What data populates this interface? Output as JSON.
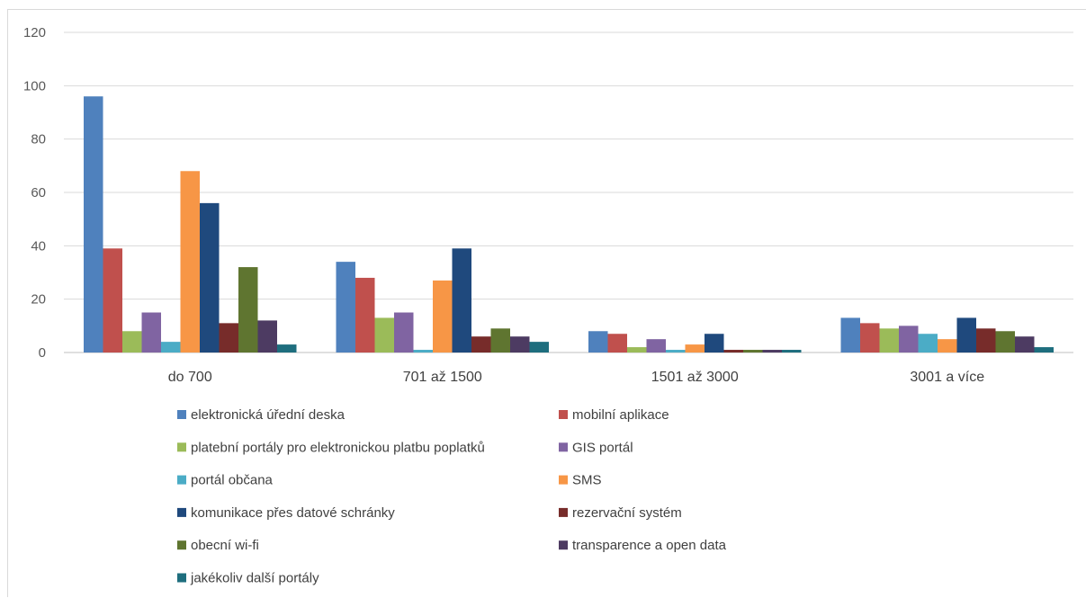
{
  "chart_data": {
    "type": "bar",
    "title": "",
    "xlabel": "",
    "ylabel": "",
    "ylim": [
      0,
      120
    ],
    "yticks": [
      0,
      20,
      40,
      60,
      80,
      100,
      120
    ],
    "grid": true,
    "legend_position": "bottom",
    "categories": [
      "do 700",
      "701 až 1500",
      "1501 až 3000",
      "3001 a více"
    ],
    "series": [
      {
        "name": "elektronická úřední deska",
        "color": "#4f81bd",
        "values": [
          96,
          34,
          8,
          13
        ]
      },
      {
        "name": "mobilní aplikace",
        "color": "#c0504d",
        "values": [
          39,
          28,
          7,
          11
        ]
      },
      {
        "name": "platební portály pro elektronickou platbu poplatků",
        "color": "#9bbb59",
        "values": [
          8,
          13,
          2,
          9
        ]
      },
      {
        "name": "GIS portál",
        "color": "#8064a2",
        "values": [
          15,
          15,
          5,
          10
        ]
      },
      {
        "name": "portál občana",
        "color": "#4bacc6",
        "values": [
          4,
          1,
          1,
          7
        ]
      },
      {
        "name": "SMS",
        "color": "#f79646",
        "values": [
          68,
          27,
          3,
          5
        ]
      },
      {
        "name": "komunikace přes datové schránky",
        "color": "#1f497d",
        "values": [
          56,
          39,
          7,
          13
        ]
      },
      {
        "name": "rezervační systém",
        "color": "#772c2a",
        "values": [
          11,
          6,
          1,
          9
        ]
      },
      {
        "name": "obecní wi-fi",
        "color": "#5f7530",
        "values": [
          32,
          9,
          1,
          8
        ]
      },
      {
        "name": "transparence a open data",
        "color": "#4d3b62",
        "values": [
          12,
          6,
          1,
          6
        ]
      },
      {
        "name": "jakékoliv další portály",
        "color": "#1e6e7e",
        "values": [
          3,
          4,
          1,
          2
        ]
      }
    ]
  }
}
